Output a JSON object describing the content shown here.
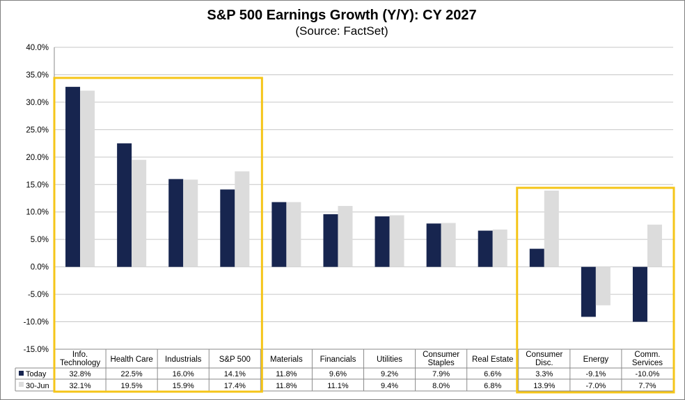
{
  "chart_data": {
    "type": "bar",
    "title": "S&P 500 Earnings Growth (Y/Y): CY 2027",
    "subtitle": "(Source: FactSet)",
    "categories": [
      "Info. Technology",
      "Health Care",
      "Industrials",
      "S&P 500",
      "Materials",
      "Financials",
      "Utilities",
      "Consumer Staples",
      "Real Estate",
      "Consumer Disc.",
      "Energy",
      "Comm. Services"
    ],
    "series": [
      {
        "name": "Today",
        "values": [
          32.8,
          22.5,
          16.0,
          14.1,
          11.8,
          9.6,
          9.2,
          7.9,
          6.6,
          3.3,
          -9.1,
          -10.0
        ],
        "labels": [
          "32.8%",
          "22.5%",
          "16.0%",
          "14.1%",
          "11.8%",
          "9.6%",
          "9.2%",
          "7.9%",
          "6.6%",
          "3.3%",
          "-9.1%",
          "-10.0%"
        ]
      },
      {
        "name": "30-Jun",
        "values": [
          32.1,
          19.5,
          15.9,
          17.4,
          11.8,
          11.1,
          9.4,
          8.0,
          6.8,
          13.9,
          -7.0,
          7.7
        ],
        "labels": [
          "32.1%",
          "19.5%",
          "15.9%",
          "17.4%",
          "11.8%",
          "11.1%",
          "9.4%",
          "8.0%",
          "6.8%",
          "13.9%",
          "-7.0%",
          "7.7%"
        ]
      }
    ],
    "ylim": [
      -15,
      40
    ],
    "yticks": [
      "40.0%",
      "35.0%",
      "30.0%",
      "25.0%",
      "20.0%",
      "15.0%",
      "10.0%",
      "5.0%",
      "0.0%",
      "-5.0%",
      "-10.0%",
      "-15.0%"
    ],
    "grid": true,
    "legend": "data-table",
    "highlight_groups": [
      [
        "Info. Technology",
        "Health Care",
        "Industrials",
        "S&P 500"
      ],
      [
        "Consumer Disc.",
        "Energy",
        "Comm. Services"
      ]
    ],
    "colors": {
      "today": "#17254f",
      "jun": "#dcdcdc",
      "highlight": "#f5c518",
      "grid": "#c6c6c6"
    }
  }
}
